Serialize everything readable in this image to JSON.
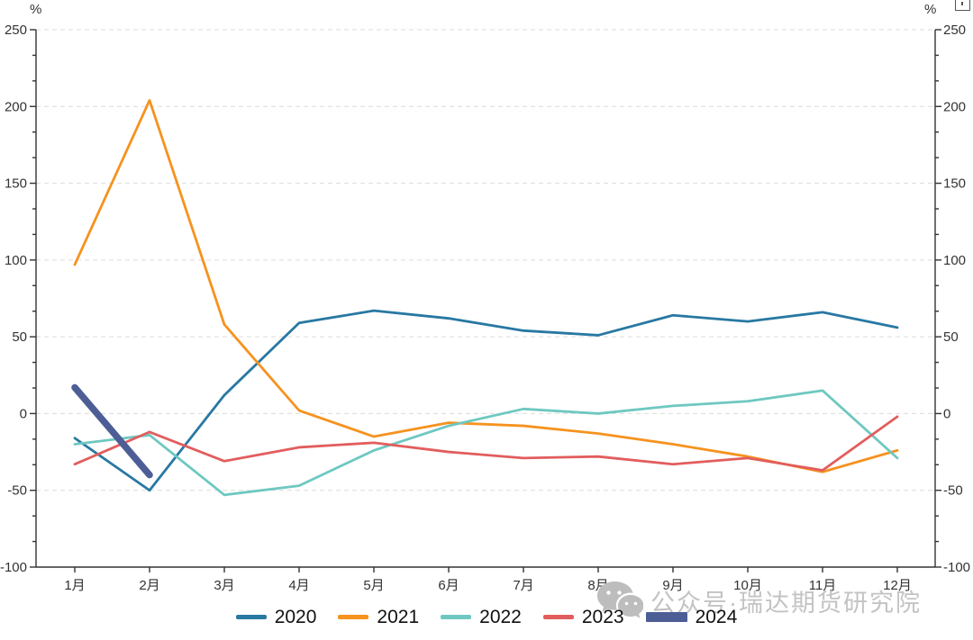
{
  "chart": {
    "left_unit": "%",
    "right_unit": "%"
  },
  "chart_data": {
    "type": "line",
    "categories": [
      "1月",
      "2月",
      "3月",
      "4月",
      "5月",
      "6月",
      "7月",
      "8月",
      "9月",
      "10月",
      "11月",
      "12月"
    ],
    "series": [
      {
        "name": "2020",
        "color": "#2878a2",
        "thick": false,
        "values": [
          -16,
          -50,
          12,
          59,
          67,
          62,
          54,
          51,
          64,
          60,
          66,
          56
        ]
      },
      {
        "name": "2021",
        "color": "#f6921e",
        "thick": false,
        "values": [
          97,
          204,
          58,
          2,
          -15,
          -6,
          -8,
          -13,
          -20,
          -28,
          -38,
          -24
        ]
      },
      {
        "name": "2022",
        "color": "#6ec8c1",
        "thick": false,
        "values": [
          -20,
          -14,
          -53,
          -47,
          -24,
          -8,
          3,
          0,
          5,
          8,
          15,
          -29
        ]
      },
      {
        "name": "2023",
        "color": "#e25d5d",
        "thick": false,
        "values": [
          -33,
          -12,
          -31,
          -22,
          -19,
          -25,
          -29,
          -28,
          -33,
          -29,
          -37,
          -2
        ]
      },
      {
        "name": "2024",
        "color": "#4d5e96",
        "thick": true,
        "values": [
          17,
          -40,
          null,
          null,
          null,
          null,
          null,
          null,
          null,
          null,
          null,
          null
        ]
      }
    ],
    "title": "",
    "xlabel": "",
    "ylabel": "%",
    "ylim": [
      -100,
      250
    ],
    "y_major_step": 50,
    "grid": "dashed horizontal",
    "legend_position": "bottom"
  },
  "watermark": {
    "icon": "wechat-icon",
    "text": "公众号·瑞达期货研究院"
  },
  "controls": {
    "corner_button": "export"
  }
}
